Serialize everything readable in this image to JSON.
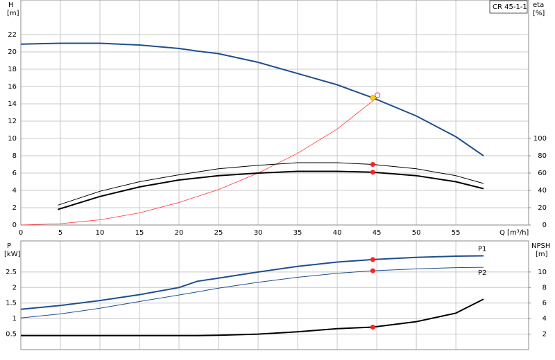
{
  "chart_data": [
    {
      "type": "line",
      "y_label": "H",
      "y_unit": "[m]",
      "y2_label": "eta",
      "y2_unit": "[%]",
      "x_label": "Q [m³/h]",
      "product": "CR 45-1-1",
      "xlim": [
        0,
        64.2
      ],
      "xticks": [
        0,
        5,
        10,
        15,
        20,
        25,
        30,
        35,
        40,
        45,
        50,
        55
      ],
      "ylim": [
        0,
        26
      ],
      "yticks": [
        0,
        2,
        4,
        6,
        8,
        10,
        12,
        14,
        16,
        18,
        20,
        22
      ],
      "y2lim": [
        0,
        260
      ],
      "y2ticks": [
        0,
        20,
        40,
        60,
        80,
        100
      ],
      "grid": true,
      "xtick_labels": true,
      "series": [
        {
          "color": "#1f4e8c",
          "width": 2,
          "x": [
            0,
            5,
            10,
            15,
            20,
            22.3,
            25,
            30,
            35,
            40,
            44.5,
            50,
            55,
            58.5
          ],
          "values": [
            20.9,
            21.0,
            21.0,
            20.8,
            20.4,
            20.1,
            19.8,
            18.8,
            17.5,
            16.2,
            14.7,
            12.6,
            10.2,
            8.0
          ]
        },
        {
          "color": "#ff3333",
          "width": 0.8,
          "x": [
            0,
            5,
            10,
            15,
            20,
            25,
            30,
            35,
            40,
            45
          ],
          "values": [
            0,
            0.15,
            0.6,
            1.4,
            2.6,
            4.1,
            6.0,
            8.3,
            11.1,
            14.7
          ]
        },
        {
          "color": "#000000",
          "width": 1,
          "axis": "y2",
          "x": [
            4.7,
            10,
            15,
            20,
            25,
            30,
            35,
            40,
            44.5,
            50,
            55,
            58.5
          ],
          "values": [
            23,
            39,
            50,
            58,
            65,
            69,
            72,
            72,
            70,
            65,
            57,
            48
          ]
        },
        {
          "color": "#000000",
          "width": 2,
          "axis": "y2",
          "x": [
            4.7,
            10,
            15,
            20,
            25,
            30,
            35,
            40,
            44.5,
            50,
            55,
            58.5
          ],
          "values": [
            18,
            33,
            44,
            52,
            57,
            60,
            62,
            62,
            61,
            57,
            50,
            42
          ]
        },
        {
          "color": "#ff3333",
          "marker": "ring",
          "x": [
            45.1
          ],
          "values": [
            15.0
          ]
        },
        {
          "color": "#ffd400",
          "marker": "dot",
          "x": [
            44.5
          ],
          "values": [
            14.7
          ]
        },
        {
          "color": "#ff2020",
          "marker": "dot",
          "axis": "y2",
          "x": [
            44.5,
            44.5
          ],
          "values": [
            70,
            61
          ]
        }
      ]
    },
    {
      "type": "line",
      "y_label": "P",
      "y_unit": "[kW]",
      "y2_label": "NPSH",
      "y2_unit": "[m]",
      "xlim": [
        0,
        64.2
      ],
      "xticks": [
        0,
        5,
        10,
        15,
        20,
        25,
        30,
        35,
        40,
        45,
        50,
        55
      ],
      "ylim": [
        0,
        3.5
      ],
      "yticks": [
        0.5,
        1.0,
        1.5,
        2.0,
        2.5
      ],
      "y2lim": [
        0,
        14
      ],
      "y2ticks": [
        2,
        4,
        6,
        8,
        10
      ],
      "grid": true,
      "xtick_labels": false,
      "series": [
        {
          "name": "P1",
          "color": "#1f4e8c",
          "width": 2,
          "x": [
            0,
            5,
            10,
            15,
            20,
            22.3,
            25,
            30,
            35,
            40,
            44.5,
            50,
            55,
            58.5
          ],
          "values": [
            1.3,
            1.42,
            1.58,
            1.77,
            2.0,
            2.2,
            2.3,
            2.5,
            2.68,
            2.82,
            2.9,
            2.97,
            3.01,
            3.02
          ]
        },
        {
          "name": "P2",
          "color": "#1f4e8c",
          "width": 1,
          "x": [
            0,
            5,
            10,
            15,
            20,
            22.3,
            25,
            30,
            35,
            40,
            44.5,
            50,
            55,
            58.5
          ],
          "values": [
            1.02,
            1.15,
            1.33,
            1.55,
            1.76,
            1.86,
            1.98,
            2.17,
            2.33,
            2.46,
            2.54,
            2.6,
            2.64,
            2.65
          ]
        },
        {
          "color": "#000000",
          "width": 2,
          "axis": "y2",
          "x": [
            0,
            22.3,
            25,
            30,
            35,
            40,
            44.5,
            50,
            55,
            58.5
          ],
          "values": [
            1.8,
            1.8,
            1.85,
            2.0,
            2.3,
            2.7,
            2.9,
            3.6,
            4.7,
            6.5
          ]
        },
        {
          "color": "#ff2020",
          "marker": "dot",
          "x": [
            44.5,
            44.5
          ],
          "values": [
            2.9,
            2.54
          ]
        },
        {
          "color": "#ff2020",
          "marker": "dot",
          "axis": "y2",
          "x": [
            44.5
          ],
          "values": [
            2.9
          ]
        }
      ]
    }
  ]
}
